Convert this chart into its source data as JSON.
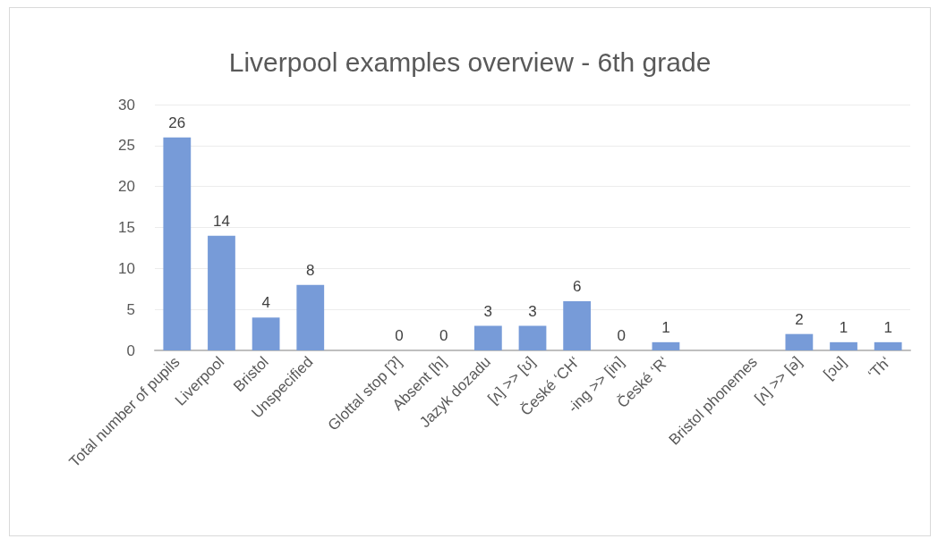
{
  "chart_data": {
    "type": "bar",
    "title": "Liverpool examples overview - 6th grade",
    "categories": [
      "Total number of pupils",
      "Liverpool",
      "Bristol",
      "Unspecified",
      null,
      "Glottal stop [ʔ]",
      "Absent [h]",
      "Jazyk dozadu",
      "[ʌ] >> [ʊ]",
      "České ‘CH‘",
      "-ing >> [in]",
      "České ‘R‘",
      null,
      "Bristol phonemes",
      "[ʌ] >> [ə]",
      "[ɔu]",
      "‘Th‘"
    ],
    "values": [
      26,
      14,
      4,
      8,
      null,
      0,
      0,
      3,
      3,
      6,
      0,
      1,
      null,
      null,
      2,
      1,
      1
    ],
    "color": "#779bd8",
    "ylim": [
      0,
      30
    ],
    "yticks": [
      0,
      5,
      10,
      15,
      20,
      25,
      30
    ],
    "grid": "y",
    "data_labels": true
  }
}
